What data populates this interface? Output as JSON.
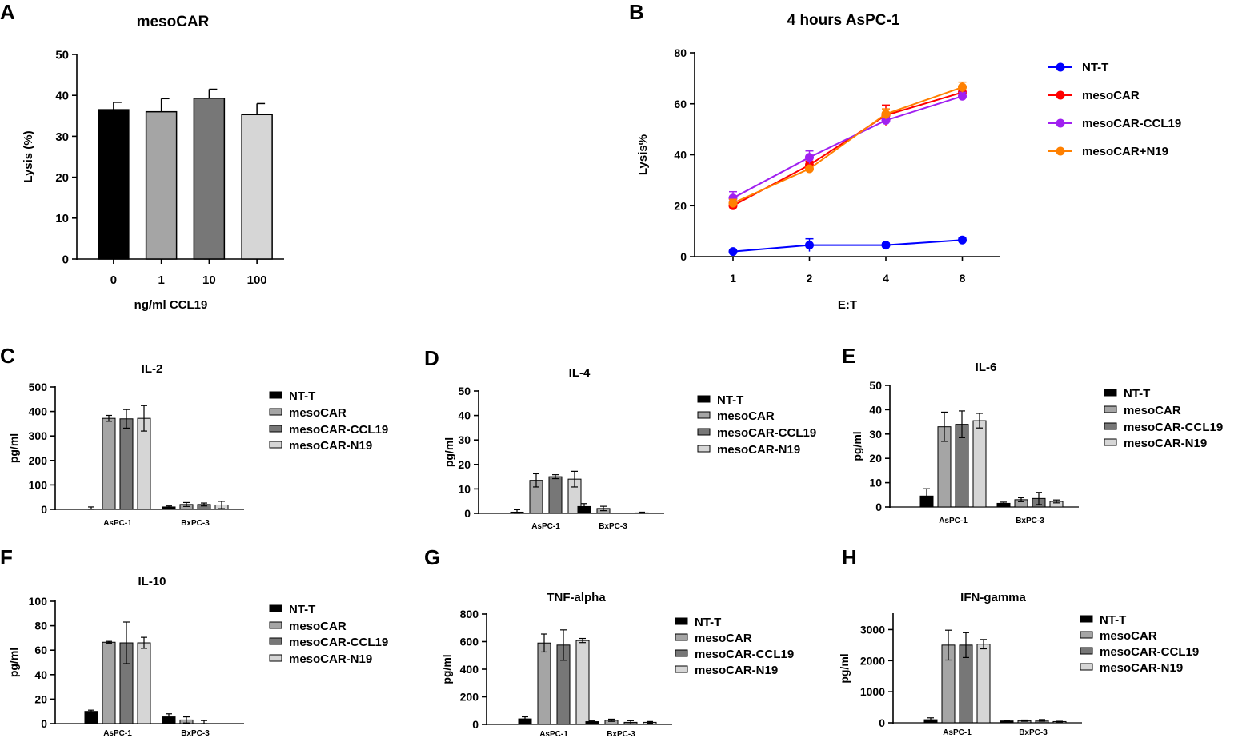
{
  "colors": {
    "ntt": "#0000ff",
    "mesocar": "#ff0000",
    "mesocar_ccl19": "#a020f0",
    "mesocar_n19": "#ff8000",
    "bar_black": "#000000",
    "bar_lgray": "#a5a5a5",
    "bar_dgray": "#777777",
    "bar_xlgray": "#d6d6d6"
  },
  "chart_data": [
    {
      "id": "A",
      "panel_label": "A",
      "type": "bar",
      "title": "mesoCAR",
      "xlabel": "ng/ml CCL19",
      "ylabel": "Lysis (%)",
      "ylim": [
        0,
        50
      ],
      "yticks": [
        "0",
        "10",
        "20",
        "30",
        "40",
        "50"
      ],
      "categories": [
        "0",
        "1",
        "10",
        "100"
      ],
      "values": [
        36.5,
        36,
        39.3,
        35.3
      ],
      "errors": [
        1.8,
        3.2,
        2.2,
        2.7
      ],
      "bar_colors": [
        "#000000",
        "#a5a5a5",
        "#777777",
        "#d6d6d6"
      ]
    },
    {
      "id": "B",
      "panel_label": "B",
      "type": "line",
      "title": "4 hours  AsPC-1",
      "xlabel": "E:T",
      "ylabel": "Lysis%",
      "ylim": [
        0,
        80
      ],
      "yticks": [
        "0",
        "20",
        "40",
        "60",
        "80"
      ],
      "categories": [
        "1",
        "2",
        "4",
        "8"
      ],
      "series": [
        {
          "name": "NT-T",
          "color": "#0000ff",
          "values": [
            2,
            4.5,
            4.5,
            6.5
          ],
          "errors": [
            0.5,
            2.5,
            0.8,
            1
          ]
        },
        {
          "name": "mesoCAR",
          "color": "#ff0000",
          "values": [
            20,
            36,
            55.5,
            64.5
          ],
          "errors": [
            1,
            1.5,
            4,
            2
          ]
        },
        {
          "name": "mesoCAR-CCL19",
          "color": "#a020f0",
          "values": [
            23,
            39,
            53.5,
            63
          ],
          "errors": [
            2.5,
            2.5,
            1.5,
            1.5
          ]
        },
        {
          "name": "mesoCAR+N19",
          "color": "#ff8000",
          "values": [
            21,
            34.5,
            56,
            66.5
          ],
          "errors": [
            1.5,
            1,
            2,
            2
          ]
        }
      ]
    },
    {
      "id": "C",
      "panel_label": "C",
      "type": "bar",
      "title": "IL-2",
      "ylabel": "pg/ml",
      "xlabel": "",
      "ylim": [
        0,
        500
      ],
      "yticks": [
        "0",
        "100",
        "200",
        "300",
        "400",
        "500"
      ],
      "categories": [
        "AsPC-1",
        "BxPC-3"
      ],
      "series": [
        {
          "name": "NT-T",
          "values": [
            0,
            10
          ],
          "errors": [
            10,
            4
          ]
        },
        {
          "name": "mesoCAR",
          "values": [
            372,
            20
          ],
          "errors": [
            12,
            8
          ]
        },
        {
          "name": "mesoCAR-CCL19",
          "values": [
            370,
            20
          ],
          "errors": [
            38,
            6
          ]
        },
        {
          "name": "mesoCAR-N19",
          "values": [
            372,
            18
          ],
          "errors": [
            52,
            15
          ]
        }
      ]
    },
    {
      "id": "D",
      "panel_label": "D",
      "type": "bar",
      "title": "IL-4",
      "ylabel": "pg/ml",
      "xlabel": "",
      "ylim": [
        0,
        50
      ],
      "yticks": [
        "0",
        "10",
        "20",
        "30",
        "40",
        "50"
      ],
      "categories": [
        "AsPC-1",
        "BxPC-3"
      ],
      "series": [
        {
          "name": "NT-T",
          "values": [
            0.5,
            2.8
          ],
          "errors": [
            1,
            1.2
          ]
        },
        {
          "name": "mesoCAR",
          "values": [
            13.5,
            2
          ],
          "errors": [
            2.7,
            0.9
          ]
        },
        {
          "name": "mesoCAR-CCL19",
          "values": [
            15,
            0
          ],
          "errors": [
            0.8,
            0
          ]
        },
        {
          "name": "mesoCAR-N19",
          "values": [
            14,
            0.2
          ],
          "errors": [
            3.2,
            0.3
          ]
        }
      ]
    },
    {
      "id": "E",
      "panel_label": "E",
      "type": "bar",
      "title": "IL-6",
      "ylabel": "pg/ml",
      "xlabel": "",
      "ylim": [
        0,
        50
      ],
      "yticks": [
        "0",
        "10",
        "20",
        "30",
        "40",
        "50"
      ],
      "categories": [
        "AsPC-1",
        "BxPC-3"
      ],
      "series": [
        {
          "name": "NT-T",
          "values": [
            4.5,
            1.5
          ],
          "errors": [
            3,
            0.5
          ]
        },
        {
          "name": "mesoCAR",
          "values": [
            33,
            3
          ],
          "errors": [
            6,
            0.8
          ]
        },
        {
          "name": "mesoCAR-CCL19",
          "values": [
            34,
            3.5
          ],
          "errors": [
            5.5,
            2.5
          ]
        },
        {
          "name": "mesoCAR-N19",
          "values": [
            35.5,
            2.3
          ],
          "errors": [
            3,
            0.6
          ]
        }
      ]
    },
    {
      "id": "F",
      "panel_label": "F",
      "type": "bar",
      "title": "IL-10",
      "ylabel": "pg/ml",
      "xlabel": "",
      "ylim": [
        0,
        100
      ],
      "yticks": [
        "0",
        "20",
        "40",
        "60",
        "80",
        "100"
      ],
      "categories": [
        "AsPC-1",
        "BxPC-3"
      ],
      "series": [
        {
          "name": "NT-T",
          "values": [
            10,
            5.5
          ],
          "errors": [
            1,
            2.5
          ]
        },
        {
          "name": "mesoCAR",
          "values": [
            66.5,
            3
          ],
          "errors": [
            0.7,
            2.5
          ]
        },
        {
          "name": "mesoCAR-CCL19",
          "values": [
            66,
            0
          ],
          "errors": [
            17,
            2.5
          ]
        },
        {
          "name": "mesoCAR-N19",
          "values": [
            66,
            0
          ],
          "errors": [
            4.5,
            0
          ]
        }
      ]
    },
    {
      "id": "G",
      "panel_label": "G",
      "type": "bar",
      "title": "TNF-alpha",
      "ylabel": "pg/ml",
      "xlabel": "",
      "ylim": [
        0,
        800
      ],
      "yticks": [
        "0",
        "200",
        "400",
        "600",
        "800"
      ],
      "categories": [
        "AsPC-1",
        "BxPC-3"
      ],
      "series": [
        {
          "name": "NT-T",
          "values": [
            40,
            20
          ],
          "errors": [
            15,
            5
          ]
        },
        {
          "name": "mesoCAR",
          "values": [
            590,
            30
          ],
          "errors": [
            65,
            8
          ]
        },
        {
          "name": "mesoCAR-CCL19",
          "values": [
            575,
            15
          ],
          "errors": [
            110,
            12
          ]
        },
        {
          "name": "mesoCAR-N19",
          "values": [
            608,
            15
          ],
          "errors": [
            15,
            6
          ]
        }
      ]
    },
    {
      "id": "H",
      "panel_label": "H",
      "type": "bar",
      "title": "IFN-gamma",
      "ylabel": "pg/ml",
      "xlabel": "",
      "ylim": [
        0,
        3500
      ],
      "yticks": [
        "0",
        "1000",
        "2000",
        "3000"
      ],
      "categories": [
        "AsPC-1",
        "BxPC-3"
      ],
      "series": [
        {
          "name": "NT-T",
          "values": [
            100,
            60
          ],
          "errors": [
            60,
            15
          ]
        },
        {
          "name": "mesoCAR",
          "values": [
            2500,
            70
          ],
          "errors": [
            480,
            20
          ]
        },
        {
          "name": "mesoCAR-CCL19",
          "values": [
            2500,
            80
          ],
          "errors": [
            400,
            25
          ]
        },
        {
          "name": "mesoCAR-N19",
          "values": [
            2530,
            40
          ],
          "errors": [
            150,
            10
          ]
        }
      ]
    }
  ]
}
